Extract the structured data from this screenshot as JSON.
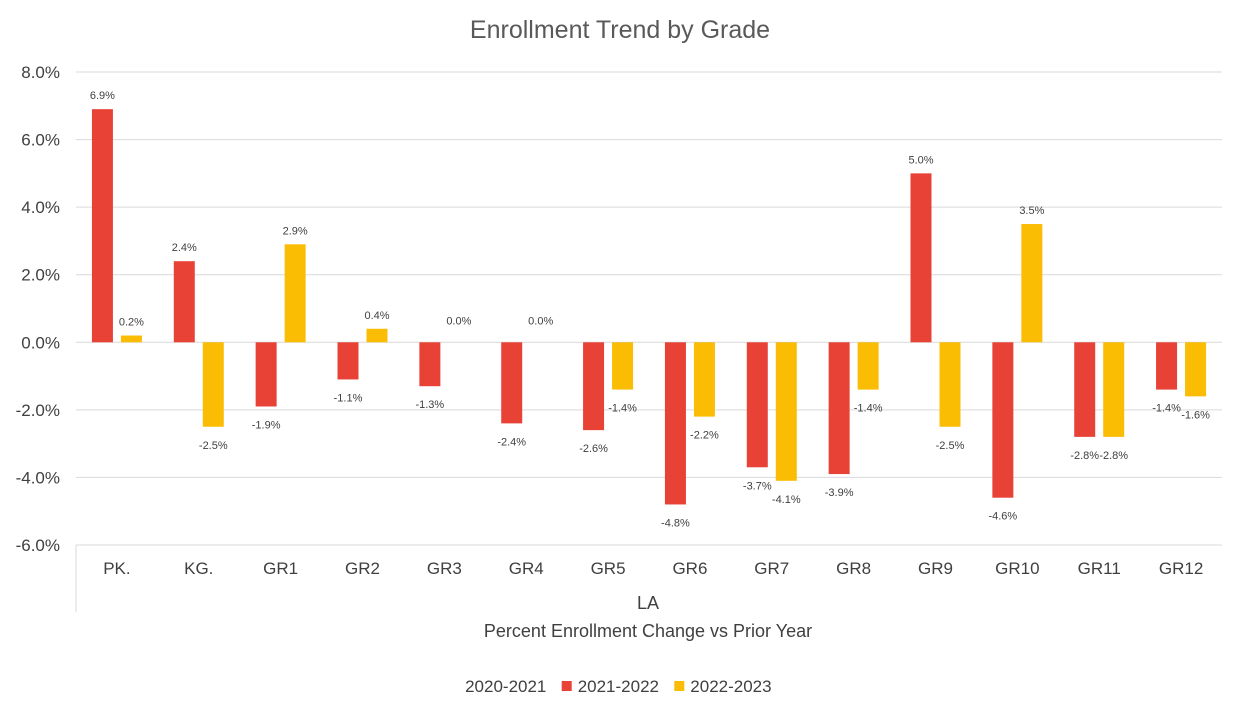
{
  "chart_data": {
    "type": "bar",
    "title": "Enrollment Trend by Grade",
    "group_label": "LA",
    "xlabel": "Percent Enrollment Change vs Prior Year",
    "categories": [
      "PK.",
      "KG.",
      "GR1",
      "GR2",
      "GR3",
      "GR4",
      "GR5",
      "GR6",
      "GR7",
      "GR8",
      "GR9",
      "GR10",
      "GR11",
      "GR12"
    ],
    "ylim": [
      -6.0,
      8.0
    ],
    "yticks": [
      8.0,
      6.0,
      4.0,
      2.0,
      0.0,
      -2.0,
      -4.0,
      -6.0
    ],
    "ytick_labels": [
      "8.0%",
      "6.0%",
      "4.0%",
      "2.0%",
      "0.0%",
      "-2.0%",
      "-4.0%",
      "-6.0%"
    ],
    "grid": true,
    "legend_position": "bottom",
    "series": [
      {
        "name": "2020-2021",
        "color": "#4472c4",
        "values": [
          null,
          null,
          null,
          null,
          null,
          null,
          null,
          null,
          null,
          null,
          null,
          null,
          null,
          null
        ],
        "labels": []
      },
      {
        "name": "2021-2022",
        "color": "#e84237",
        "values": [
          6.9,
          2.4,
          -1.9,
          -1.1,
          -1.3,
          -2.4,
          -2.6,
          -4.8,
          -3.7,
          -3.9,
          5.0,
          -4.6,
          -2.8,
          -1.4
        ],
        "labels": [
          "6.9%",
          "2.4%",
          "-1.9%",
          "-1.1%",
          "-1.3%",
          "-2.4%",
          "-2.6%",
          "-4.8%",
          "-3.7%",
          "-3.9%",
          "5.0%",
          "-4.6%",
          "-2.8%",
          "-1.4%"
        ]
      },
      {
        "name": "2022-2023",
        "color": "#fbbc04",
        "values": [
          0.2,
          -2.5,
          2.9,
          0.4,
          0.0,
          0.0,
          -1.4,
          -2.2,
          -4.1,
          -1.4,
          -2.5,
          3.5,
          -2.8,
          -1.6
        ],
        "labels": [
          "0.2%",
          "-2.5%",
          "2.9%",
          "0.4%",
          "0.0%",
          "0.0%",
          "-1.4%",
          "-2.2%",
          "-4.1%",
          "-1.4%",
          "-2.5%",
          "3.5%",
          "-2.8%",
          "-1.6%"
        ]
      }
    ]
  }
}
